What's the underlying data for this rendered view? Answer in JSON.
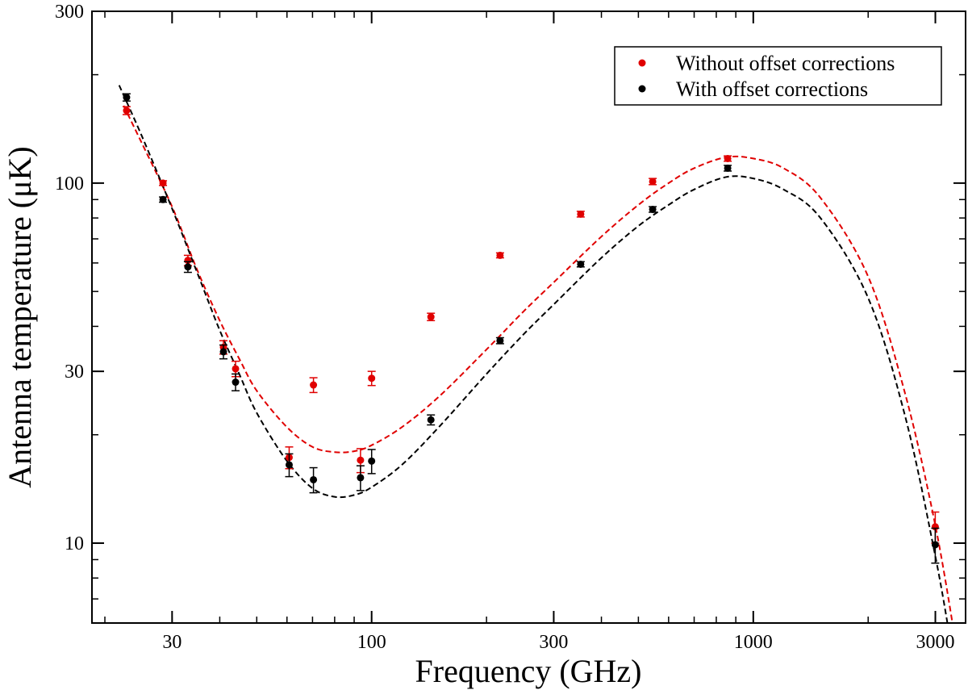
{
  "chart_data": {
    "type": "scatter",
    "title": "",
    "xlabel": "Frequency (GHz)",
    "ylabel": "Antenna temperature (μK)",
    "xscale": "log",
    "yscale": "log",
    "xlim": [
      18.5,
      3600
    ],
    "ylim": [
      6,
      300
    ],
    "xticks": [
      {
        "value": 30,
        "label": "30"
      },
      {
        "value": 100,
        "label": "100"
      },
      {
        "value": 300,
        "label": "300"
      },
      {
        "value": 1000,
        "label": "1000"
      },
      {
        "value": 3000,
        "label": "3000"
      }
    ],
    "yticks": [
      {
        "value": 10,
        "label": "10"
      },
      {
        "value": 30,
        "label": "30"
      },
      {
        "value": 100,
        "label": "100"
      },
      {
        "value": 300,
        "label": "300"
      }
    ],
    "legend_position": "top-right",
    "series": [
      {
        "name": "Without offset corrections",
        "color": "#e00000",
        "points": [
          {
            "x": 22.8,
            "y": 159,
            "err": 4
          },
          {
            "x": 28.4,
            "y": 100,
            "err": 1.5
          },
          {
            "x": 33,
            "y": 61,
            "err": 2
          },
          {
            "x": 40.9,
            "y": 35,
            "err": 1.5
          },
          {
            "x": 44,
            "y": 30.5,
            "err": 1.5
          },
          {
            "x": 60.8,
            "y": 17.3,
            "err": 1.2
          },
          {
            "x": 70.4,
            "y": 27.5,
            "err": 1.3
          },
          {
            "x": 93.5,
            "y": 17,
            "err": 1.3
          },
          {
            "x": 100,
            "y": 28.7,
            "err": 1.3
          },
          {
            "x": 143,
            "y": 42.5,
            "err": 1
          },
          {
            "x": 217,
            "y": 63,
            "err": 1
          },
          {
            "x": 353,
            "y": 82,
            "err": 1.5
          },
          {
            "x": 545,
            "y": 101,
            "err": 2
          },
          {
            "x": 857,
            "y": 117,
            "err": 2
          },
          {
            "x": 2998,
            "y": 11.1,
            "err": 1.1
          }
        ],
        "model": [
          {
            "x": 22.4,
            "y": 164
          },
          {
            "x": 25,
            "y": 129
          },
          {
            "x": 30,
            "y": 86
          },
          {
            "x": 35,
            "y": 57
          },
          {
            "x": 40,
            "y": 41.5
          },
          {
            "x": 45,
            "y": 32.5
          },
          {
            "x": 50,
            "y": 26.5
          },
          {
            "x": 60,
            "y": 21
          },
          {
            "x": 70,
            "y": 18.5
          },
          {
            "x": 80,
            "y": 17.9
          },
          {
            "x": 90,
            "y": 18
          },
          {
            "x": 100,
            "y": 18.7
          },
          {
            "x": 120,
            "y": 21
          },
          {
            "x": 150,
            "y": 25.5
          },
          {
            "x": 200,
            "y": 34.5
          },
          {
            "x": 250,
            "y": 44
          },
          {
            "x": 300,
            "y": 53
          },
          {
            "x": 400,
            "y": 71
          },
          {
            "x": 500,
            "y": 87
          },
          {
            "x": 600,
            "y": 100
          },
          {
            "x": 700,
            "y": 110
          },
          {
            "x": 850,
            "y": 118
          },
          {
            "x": 1000,
            "y": 117
          },
          {
            "x": 1200,
            "y": 110
          },
          {
            "x": 1500,
            "y": 91
          },
          {
            "x": 2000,
            "y": 55
          },
          {
            "x": 2500,
            "y": 26
          },
          {
            "x": 3000,
            "y": 11.2
          },
          {
            "x": 3400,
            "y": 5.2
          }
        ]
      },
      {
        "name": "With offset corrections",
        "color": "#000000",
        "points": [
          {
            "x": 22.8,
            "y": 173,
            "err": 4
          },
          {
            "x": 28.4,
            "y": 90,
            "err": 1.5
          },
          {
            "x": 33,
            "y": 58.5,
            "err": 2
          },
          {
            "x": 40.9,
            "y": 34,
            "err": 1.5
          },
          {
            "x": 44,
            "y": 28,
            "err": 1.5
          },
          {
            "x": 60.8,
            "y": 16.5,
            "err": 1.2
          },
          {
            "x": 70.4,
            "y": 15,
            "err": 1.2
          },
          {
            "x": 93.5,
            "y": 15.2,
            "err": 1.2
          },
          {
            "x": 100,
            "y": 16.9,
            "err": 1.3
          },
          {
            "x": 143,
            "y": 22,
            "err": 0.7
          },
          {
            "x": 217,
            "y": 36.5,
            "err": 0.7
          },
          {
            "x": 353,
            "y": 59.5,
            "err": 1
          },
          {
            "x": 545,
            "y": 84.5,
            "err": 1.5
          },
          {
            "x": 857,
            "y": 110,
            "err": 2
          },
          {
            "x": 2998,
            "y": 9.9,
            "err": 1.1
          }
        ],
        "model": [
          {
            "x": 21.8,
            "y": 187
          },
          {
            "x": 25,
            "y": 135
          },
          {
            "x": 30,
            "y": 85
          },
          {
            "x": 35,
            "y": 56
          },
          {
            "x": 40,
            "y": 39
          },
          {
            "x": 45,
            "y": 29.5
          },
          {
            "x": 50,
            "y": 23
          },
          {
            "x": 60,
            "y": 16.9
          },
          {
            "x": 70,
            "y": 14.2
          },
          {
            "x": 80,
            "y": 13.45
          },
          {
            "x": 90,
            "y": 13.6
          },
          {
            "x": 100,
            "y": 14.3
          },
          {
            "x": 120,
            "y": 16.5
          },
          {
            "x": 150,
            "y": 21
          },
          {
            "x": 200,
            "y": 29.5
          },
          {
            "x": 250,
            "y": 38
          },
          {
            "x": 300,
            "y": 46
          },
          {
            "x": 400,
            "y": 62
          },
          {
            "x": 500,
            "y": 76
          },
          {
            "x": 600,
            "y": 87
          },
          {
            "x": 700,
            "y": 96
          },
          {
            "x": 850,
            "y": 104
          },
          {
            "x": 1000,
            "y": 103
          },
          {
            "x": 1200,
            "y": 96
          },
          {
            "x": 1500,
            "y": 80
          },
          {
            "x": 2000,
            "y": 48
          },
          {
            "x": 2500,
            "y": 22.5
          },
          {
            "x": 3000,
            "y": 9.2
          },
          {
            "x": 3300,
            "y": 5.2
          }
        ]
      }
    ]
  }
}
